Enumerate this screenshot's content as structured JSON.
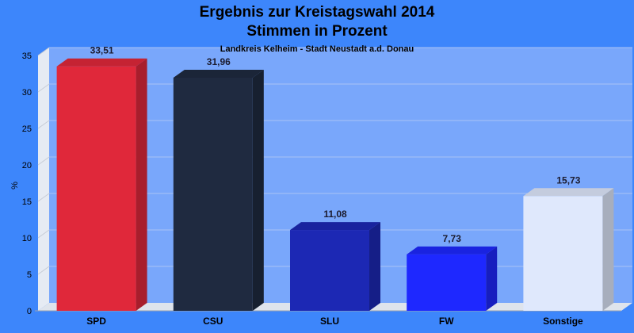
{
  "chart_data": {
    "type": "bar",
    "title": [
      "Ergebnis zur Kreistagswahl 2014",
      "Stimmen in Prozent"
    ],
    "subtitle": "Landkreis Kelheim - Stadt Neustadt a.d. Donau",
    "ylabel": "%",
    "xlabel": "",
    "ylim": [
      0,
      35
    ],
    "yticks": [
      0,
      5,
      10,
      15,
      20,
      25,
      30,
      35
    ],
    "grid": true,
    "categories": [
      "SPD",
      "CSU",
      "SLU",
      "FW",
      "Sonstige"
    ],
    "values": [
      33.51,
      31.96,
      11.08,
      7.73,
      15.73
    ],
    "value_labels": [
      "33,51",
      "31,96",
      "11,08",
      "7,73",
      "15,73"
    ],
    "colors": [
      "#e0283a",
      "#1f2a40",
      "#1c28b4",
      "#1e28ff",
      "#dfe8fc"
    ]
  }
}
